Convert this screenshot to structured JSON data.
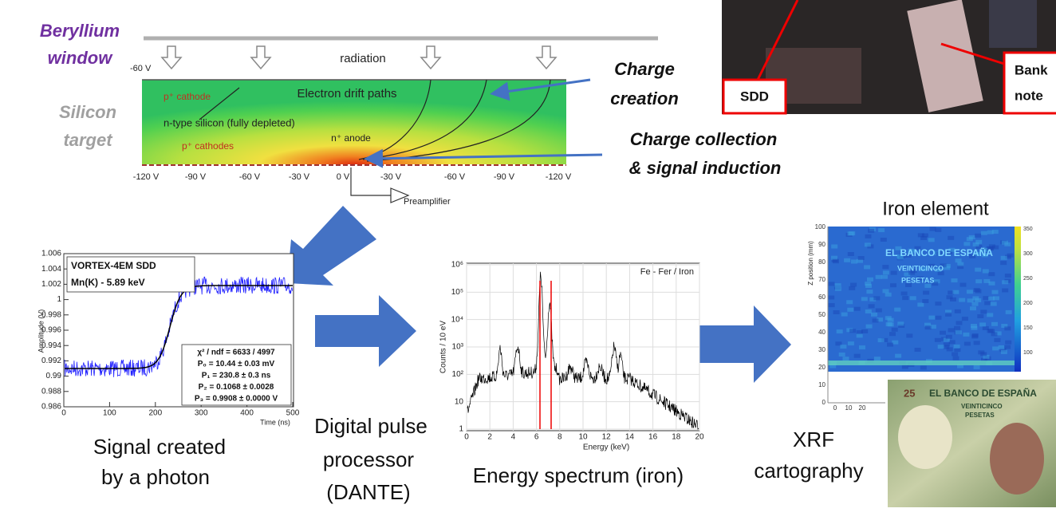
{
  "detector": {
    "window_label": [
      "Beryllium",
      "window"
    ],
    "target_label": [
      "Silicon",
      "target"
    ],
    "top_voltage": "-60 V",
    "radiation": "radiation",
    "labels": {
      "p_cathode": "p⁺ cathode",
      "drift": "Electron drift paths",
      "silicon": "n-type silicon (fully depleted)",
      "p_cathodes": "p⁺ cathodes",
      "anode": "n⁺ anode"
    },
    "voltages": [
      "-120 V",
      "-90 V",
      "-60 V",
      "-30 V",
      "0 V",
      "-30 V",
      "-60 V",
      "-90 V",
      "-120 V"
    ],
    "preamplifier": "Preamplifier"
  },
  "annotations": {
    "charge_creation": [
      "Charge",
      "creation"
    ],
    "charge_collection": [
      "Charge collection",
      "& signal induction"
    ]
  },
  "photo": {
    "sdd": "SDD",
    "banknote": [
      "Bank",
      "note"
    ]
  },
  "signal_plot": {
    "legend": [
      "VORTEX-4EM SDD",
      "Mn(K) - 5.89 keV"
    ],
    "y_label": "Amplitude (V)",
    "yticks": [
      "1.006",
      "1.004",
      "1.002",
      "1",
      "0.998",
      "0.996",
      "0.994",
      "0.992",
      "0.99",
      "0.988",
      "0.986"
    ],
    "x_label": "Time (ns)",
    "xticks": [
      "0",
      "100",
      "200",
      "300",
      "400",
      "500"
    ],
    "fit": [
      "χ² / ndf = 6633 / 4997",
      "P₀ = 10.44 ± 0.03 mV",
      "P₁ = 230.8 ± 0.3 ns",
      "P₂ = 0.1068 ± 0.0028",
      "P₃ = 0.9908 ± 0.0000 V"
    ]
  },
  "spectrum_plot": {
    "legend": "Fe - Fer / Iron",
    "y_label": "Counts / 10 eV",
    "yticks": [
      "10⁶",
      "10⁵",
      "10⁴",
      "10³",
      "10²",
      "10",
      "1"
    ],
    "x_label": "Energy (keV)",
    "xticks": [
      "0",
      "2",
      "4",
      "6",
      "8",
      "10",
      "12",
      "14",
      "16",
      "18",
      "20"
    ]
  },
  "map": {
    "title": "Iron element",
    "y_label": "Z position (mm)",
    "yticks": [
      "100",
      "90",
      "80",
      "70",
      "60",
      "50",
      "40",
      "30",
      "20",
      "10",
      "0"
    ],
    "xticks": [
      "0",
      "10",
      "20"
    ],
    "colorbar_ticks": [
      "350",
      "300",
      "250",
      "200",
      "150",
      "100"
    ],
    "map_text": [
      "EL BANCO DE ESPAÑA",
      "VEINTICINCO",
      "PESETAS"
    ],
    "banknote_text": [
      "EL BANCO DE ESPAÑA",
      "VEINTICINCO",
      "PESETAS",
      "25"
    ]
  },
  "captions": {
    "signal": [
      "Signal created",
      "by a photon"
    ],
    "processor": [
      "Digital pulse",
      "processor",
      "(DANTE)"
    ],
    "spectrum": "Energy spectrum (iron)",
    "xrf": [
      "XRF",
      "cartography"
    ]
  }
}
